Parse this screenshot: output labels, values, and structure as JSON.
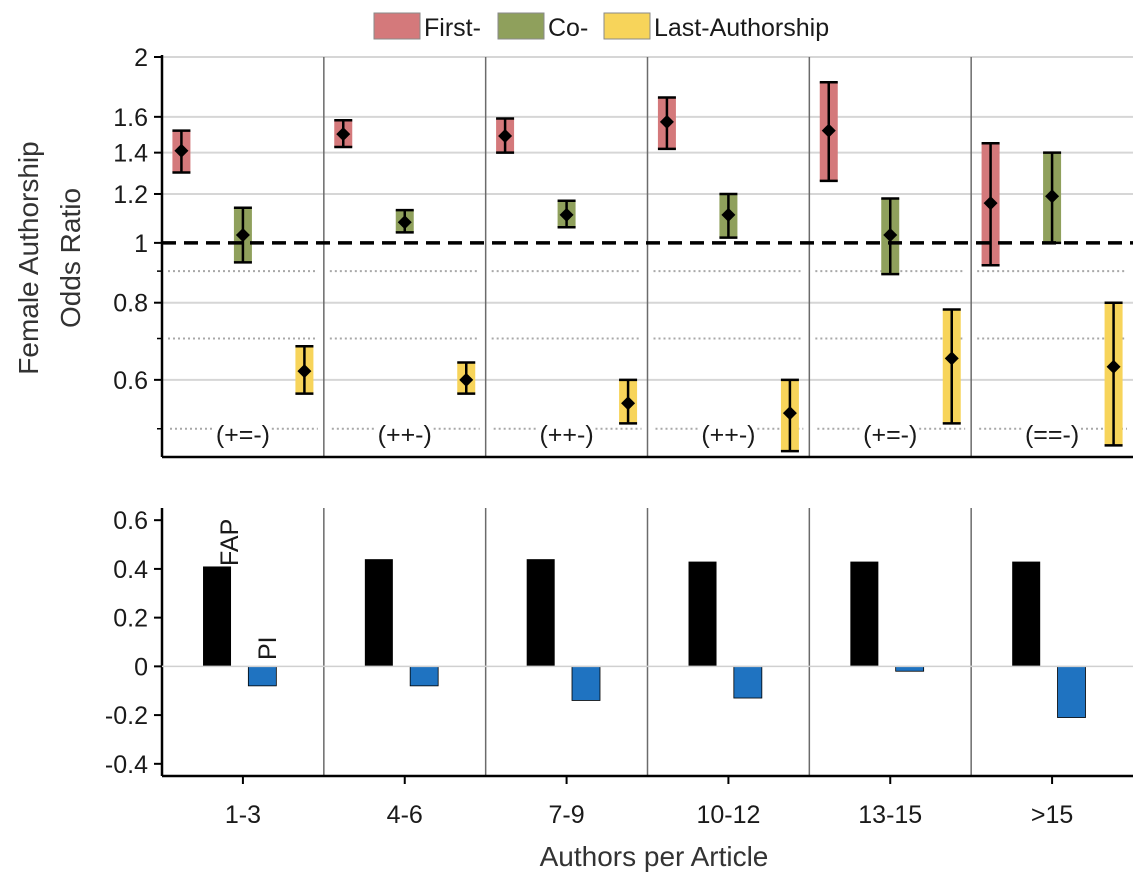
{
  "legend": {
    "entries": [
      {
        "label": "First-",
        "color": "#d4797b"
      },
      {
        "label": "Co-",
        "color": "#8fa05c"
      },
      {
        "label": "Last-Authorship",
        "color": "#f7d45a"
      }
    ]
  },
  "colors": {
    "first": "#d4797b",
    "co": "#8fa05c",
    "last": "#f7d45a",
    "fap_bar": "#000000",
    "pi_bar": "#1f73c1",
    "reference_line": "#000000"
  },
  "chart_data": [
    {
      "type": "scatter",
      "subtype": "odds-ratio-with-error-bars",
      "ylabel_line1": "Female Authorship",
      "ylabel_line2": "Odds Ratio",
      "ylim": [
        0.45,
        2
      ],
      "yscale": "log",
      "yticks": [
        0.6,
        0.8,
        1,
        1.2,
        1.4,
        1.6,
        2
      ],
      "ytick_labels": [
        "0.6",
        "0.8",
        "1",
        "1.2",
        "1.4",
        "1.6",
        "2"
      ],
      "reference_line": 1,
      "categories": [
        "1-3",
        "4-6",
        "7-9",
        "10-12",
        "13-15",
        ">15"
      ],
      "significance": [
        "(+=-)",
        "(++-)",
        "(++-)",
        "(++-)",
        "(+=-)",
        "(==-)"
      ],
      "series": [
        {
          "name": "First-",
          "color": "#d4797b",
          "values": [
            1.41,
            1.5,
            1.49,
            1.57,
            1.52,
            1.16
          ],
          "ci_low": [
            1.3,
            1.43,
            1.4,
            1.42,
            1.26,
            0.92
          ],
          "ci_high": [
            1.52,
            1.58,
            1.59,
            1.72,
            1.82,
            1.45
          ]
        },
        {
          "name": "Co-",
          "color": "#8fa05c",
          "values": [
            1.03,
            1.08,
            1.11,
            1.11,
            1.03,
            1.19
          ],
          "ci_low": [
            0.93,
            1.04,
            1.06,
            1.02,
            0.89,
            1.0
          ],
          "ci_high": [
            1.14,
            1.13,
            1.17,
            1.2,
            1.18,
            1.4
          ]
        },
        {
          "name": "Last-Authorship",
          "color": "#f7d45a",
          "values": [
            0.62,
            0.6,
            0.55,
            0.53,
            0.65,
            0.63
          ],
          "ci_low": [
            0.57,
            0.57,
            0.51,
            0.46,
            0.51,
            0.47
          ],
          "ci_high": [
            0.68,
            0.64,
            0.6,
            0.6,
            0.78,
            0.8
          ]
        }
      ]
    },
    {
      "type": "bar",
      "xlabel": "Authors per Article",
      "ylim": [
        -0.45,
        0.65
      ],
      "yticks": [
        -0.4,
        -0.2,
        0,
        0.2,
        0.4,
        0.6
      ],
      "ytick_labels": [
        "-0.4",
        "-0.2",
        "0",
        "0.2",
        "0.4",
        "0.6"
      ],
      "categories": [
        "1-3",
        "4-6",
        "7-9",
        "10-12",
        "13-15",
        ">15"
      ],
      "series": [
        {
          "name": "FAP",
          "color": "#000000",
          "values": [
            0.41,
            0.44,
            0.44,
            0.43,
            0.43,
            0.43
          ]
        },
        {
          "name": "PI",
          "color": "#1f73c1",
          "values": [
            -0.08,
            -0.08,
            -0.14,
            -0.13,
            -0.02,
            -0.21
          ]
        }
      ],
      "annotations": [
        "FAP",
        "PI"
      ]
    }
  ]
}
